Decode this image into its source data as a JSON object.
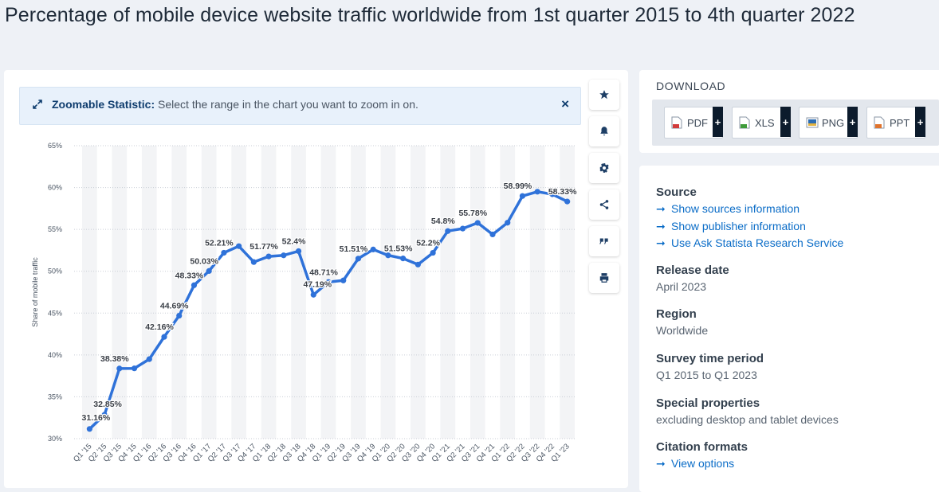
{
  "page": {
    "title": "Percentage of mobile device website traffic worldwide from 1st quarter 2015 to 4th quarter 2022"
  },
  "zoom_banner": {
    "label": "Zoomable Statistic:",
    "text": " Select the range in the chart you want to zoom in on.",
    "close": "×"
  },
  "toolbar": {
    "icons": [
      "star-icon",
      "bell-icon",
      "gear-icon",
      "share-icon",
      "quote-icon",
      "print-icon"
    ]
  },
  "download": {
    "title": "DOWNLOAD",
    "formats": [
      {
        "label": "PDF",
        "plus": "+",
        "color": "#d23b3b"
      },
      {
        "label": "XLS",
        "plus": "+",
        "color": "#3f9b3a"
      },
      {
        "label": "PNG",
        "plus": "+",
        "color": "#2b6cb3"
      },
      {
        "label": "PPT",
        "plus": "+",
        "color": "#e0732c"
      }
    ]
  },
  "info": {
    "source_h": "Source",
    "source_links": [
      "Show sources information",
      "Show publisher information",
      "Use Ask Statista Research Service"
    ],
    "release_h": "Release date",
    "release_v": "April 2023",
    "region_h": "Region",
    "region_v": "Worldwide",
    "survey_h": "Survey time period",
    "survey_v": "Q1 2015 to Q1 2023",
    "special_h": "Special properties",
    "special_v": "excluding desktop and tablet devices",
    "citation_h": "Citation formats",
    "citation_link": "View options"
  },
  "chart_data": {
    "type": "line",
    "ylabel": "Share of mobile traffic",
    "xlabel": "",
    "ylim": [
      30,
      65
    ],
    "y_ticks": [
      "30%",
      "35%",
      "40%",
      "45%",
      "50%",
      "55%",
      "60%",
      "65%"
    ],
    "grid": true,
    "line_color": "#2f72d9",
    "categories": [
      "Q1 '15",
      "Q2 '15",
      "Q3 '15",
      "Q4 '15",
      "Q1 '16",
      "Q2 '16",
      "Q3 '16",
      "Q4 '16",
      "Q1 '17",
      "Q2 '17",
      "Q3 '17",
      "Q4 '17",
      "Q1 '18",
      "Q2 '18",
      "Q3 '18",
      "Q4 '18",
      "Q1 '19",
      "Q2 '19",
      "Q3 '19",
      "Q4 '19",
      "Q1 '20",
      "Q2 '20",
      "Q3 '20",
      "Q4 '20",
      "Q1 '21",
      "Q2 '21",
      "Q3 '21",
      "Q4 '21",
      "Q1 '22",
      "Q2 '22",
      "Q3 '22",
      "Q4 '22",
      "Q1 '23"
    ],
    "values": [
      31.16,
      32.85,
      38.38,
      38.4,
      39.5,
      42.16,
      44.69,
      48.33,
      50.03,
      52.21,
      53.0,
      51.1,
      51.77,
      51.9,
      52.4,
      47.19,
      48.71,
      48.9,
      51.51,
      52.6,
      51.9,
      51.53,
      50.8,
      52.2,
      54.8,
      55.1,
      55.78,
      54.4,
      55.8,
      58.99,
      59.5,
      59.2,
      58.33
    ],
    "data_labels": [
      {
        "i": 0,
        "text": "31.16%"
      },
      {
        "i": 1,
        "text": "32.85%"
      },
      {
        "i": 2,
        "text": "38.38%"
      },
      {
        "i": 5,
        "text": "42.16%"
      },
      {
        "i": 6,
        "text": "44.69%"
      },
      {
        "i": 7,
        "text": "48.33%"
      },
      {
        "i": 8,
        "text": "50.03%"
      },
      {
        "i": 9,
        "text": "52.21%"
      },
      {
        "i": 12,
        "text": "51.77%"
      },
      {
        "i": 14,
        "text": "52.4%"
      },
      {
        "i": 15,
        "text": "47.19%"
      },
      {
        "i": 16,
        "text": "48.71%"
      },
      {
        "i": 18,
        "text": "51.51%"
      },
      {
        "i": 21,
        "text": "51.53%"
      },
      {
        "i": 23,
        "text": "52.2%"
      },
      {
        "i": 24,
        "text": "54.8%"
      },
      {
        "i": 26,
        "text": "55.78%"
      },
      {
        "i": 29,
        "text": "58.99%"
      },
      {
        "i": 32,
        "text": "58.33%"
      }
    ]
  }
}
